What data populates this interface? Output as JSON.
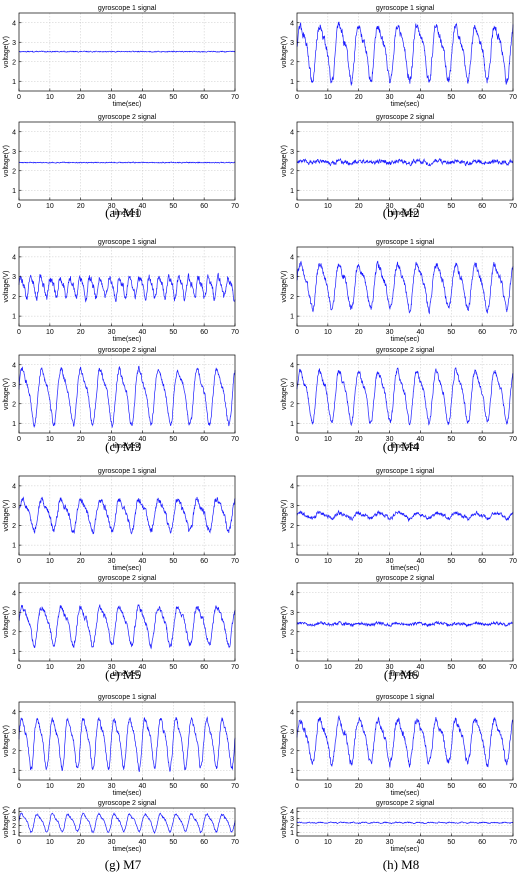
{
  "figure": {
    "panels": [
      {
        "caption": "(a) M1"
      },
      {
        "caption": "(b) M2"
      },
      {
        "caption": "(c) M3"
      },
      {
        "caption": "(d) M4"
      },
      {
        "caption": "(e) M5"
      },
      {
        "caption": "(f) M6"
      },
      {
        "caption": "(g) M7"
      },
      {
        "caption": "(h) M8"
      }
    ]
  },
  "colors": {
    "signal": "#1a1aff",
    "grid": "#c8c8c8",
    "axis": "#000000"
  },
  "chart_data": [
    {
      "type": "line",
      "panel": "M1",
      "title": "gyroscope 1 signal",
      "xlabel": "time(sec)",
      "ylabel": "voltage(V)",
      "xlim": [
        0,
        70
      ],
      "ylim": [
        0.5,
        4.5
      ],
      "xticks": [
        0,
        10,
        20,
        30,
        40,
        50,
        60,
        70
      ],
      "yticks": [
        1,
        2,
        3,
        4
      ],
      "grid": true,
      "signal": {
        "mean": 2.52,
        "amplitude": 0,
        "period_sec": 0,
        "noise": 0.02
      }
    },
    {
      "type": "line",
      "panel": "M1",
      "title": "gyroscope 2 signal",
      "xlabel": "time(sec)",
      "ylabel": "voltage(V)",
      "xlim": [
        0,
        70
      ],
      "ylim": [
        0.5,
        4.5
      ],
      "xticks": [
        0,
        10,
        20,
        30,
        40,
        50,
        60,
        70
      ],
      "yticks": [
        1,
        2,
        3,
        4
      ],
      "grid": true,
      "signal": {
        "mean": 2.42,
        "amplitude": 0,
        "period_sec": 0,
        "noise": 0.02
      }
    },
    {
      "type": "line",
      "panel": "M2",
      "title": "gyroscope 1 signal",
      "xlabel": "time(sec)",
      "ylabel": "voltage(V)",
      "xlim": [
        0,
        70
      ],
      "ylim": [
        0.5,
        4.5
      ],
      "xticks": [
        0,
        10,
        20,
        30,
        40,
        50,
        60,
        70
      ],
      "yticks": [
        1,
        2,
        3,
        4
      ],
      "grid": true,
      "signal": {
        "mean": 2.6,
        "amplitude": 1.5,
        "period_sec": 6.3,
        "noise": 0.18
      }
    },
    {
      "type": "line",
      "panel": "M2",
      "title": "gyroscope 2 signal",
      "xlabel": "time(sec)",
      "ylabel": "voltage(V)",
      "xlim": [
        0,
        70
      ],
      "ylim": [
        0.5,
        4.5
      ],
      "xticks": [
        0,
        10,
        20,
        30,
        40,
        50,
        60,
        70
      ],
      "yticks": [
        1,
        2,
        3,
        4
      ],
      "grid": true,
      "signal": {
        "mean": 2.45,
        "amplitude": 0.05,
        "period_sec": 6.3,
        "noise": 0.09
      }
    },
    {
      "type": "line",
      "panel": "M3",
      "title": "gyroscope 1 signal",
      "xlabel": "time(sec)",
      "ylabel": "voltage(V)",
      "xlim": [
        0,
        70
      ],
      "ylim": [
        0.5,
        4.5
      ],
      "xticks": [
        0,
        10,
        20,
        30,
        40,
        50,
        60,
        70
      ],
      "yticks": [
        1,
        2,
        3,
        4
      ],
      "grid": true,
      "signal": {
        "mean": 2.5,
        "amplitude": 0.55,
        "period_sec": 3.2,
        "noise": 0.15
      }
    },
    {
      "type": "line",
      "panel": "M3",
      "title": "gyroscope 2 signal",
      "xlabel": "time(sec)",
      "ylabel": "voltage(V)",
      "xlim": [
        0,
        70
      ],
      "ylim": [
        0.5,
        4.5
      ],
      "xticks": [
        0,
        10,
        20,
        30,
        40,
        50,
        60,
        70
      ],
      "yticks": [
        1,
        2,
        3,
        4
      ],
      "grid": true,
      "signal": {
        "mean": 2.5,
        "amplitude": 1.5,
        "period_sec": 6.3,
        "noise": 0.12
      }
    },
    {
      "type": "line",
      "panel": "M4",
      "title": "gyroscope 1 signal",
      "xlabel": "time(sec)",
      "ylabel": "voltage(V)",
      "xlim": [
        0,
        70
      ],
      "ylim": [
        0.5,
        4.5
      ],
      "xticks": [
        0,
        10,
        20,
        30,
        40,
        50,
        60,
        70
      ],
      "yticks": [
        1,
        2,
        3,
        4
      ],
      "grid": true,
      "signal": {
        "mean": 2.6,
        "amplitude": 1.2,
        "period_sec": 6.3,
        "noise": 0.15
      }
    },
    {
      "type": "line",
      "panel": "M4",
      "title": "gyroscope 2 signal",
      "xlabel": "time(sec)",
      "ylabel": "voltage(V)",
      "xlim": [
        0,
        70
      ],
      "ylim": [
        0.5,
        4.5
      ],
      "xticks": [
        0,
        10,
        20,
        30,
        40,
        50,
        60,
        70
      ],
      "yticks": [
        1,
        2,
        3,
        4
      ],
      "grid": true,
      "signal": {
        "mean": 2.5,
        "amplitude": 1.4,
        "period_sec": 6.3,
        "noise": 0.12
      }
    },
    {
      "type": "line",
      "panel": "M5",
      "title": "gyroscope 1 signal",
      "xlabel": "time(sec)",
      "ylabel": "voltage(V)",
      "xlim": [
        0,
        70
      ],
      "ylim": [
        0.5,
        4.5
      ],
      "xticks": [
        0,
        10,
        20,
        30,
        40,
        50,
        60,
        70
      ],
      "yticks": [
        1,
        2,
        3,
        4
      ],
      "grid": true,
      "signal": {
        "mean": 2.6,
        "amplitude": 0.85,
        "period_sec": 6.3,
        "noise": 0.13
      }
    },
    {
      "type": "line",
      "panel": "M5",
      "title": "gyroscope 2 signal",
      "xlabel": "time(sec)",
      "ylabel": "voltage(V)",
      "xlim": [
        0,
        70
      ],
      "ylim": [
        0.5,
        4.5
      ],
      "xticks": [
        0,
        10,
        20,
        30,
        40,
        50,
        60,
        70
      ],
      "yticks": [
        1,
        2,
        3,
        4
      ],
      "grid": true,
      "signal": {
        "mean": 2.4,
        "amplitude": 1.05,
        "period_sec": 6.3,
        "noise": 0.12
      }
    },
    {
      "type": "line",
      "panel": "M6",
      "title": "gyroscope 1 signal",
      "xlabel": "time(sec)",
      "ylabel": "voltage(V)",
      "xlim": [
        0,
        70
      ],
      "ylim": [
        0.5,
        4.5
      ],
      "xticks": [
        0,
        10,
        20,
        30,
        40,
        50,
        60,
        70
      ],
      "yticks": [
        1,
        2,
        3,
        4
      ],
      "grid": true,
      "signal": {
        "mean": 2.5,
        "amplitude": 0.15,
        "period_sec": 6.3,
        "noise": 0.08
      }
    },
    {
      "type": "line",
      "panel": "M6",
      "title": "gyroscope 2 signal",
      "xlabel": "time(sec)",
      "ylabel": "voltage(V)",
      "xlim": [
        0,
        70
      ],
      "ylim": [
        0.5,
        4.5
      ],
      "xticks": [
        0,
        10,
        20,
        30,
        40,
        50,
        60,
        70
      ],
      "yticks": [
        1,
        2,
        3,
        4
      ],
      "grid": true,
      "signal": {
        "mean": 2.4,
        "amplitude": 0.05,
        "period_sec": 6.3,
        "noise": 0.06
      }
    },
    {
      "type": "line",
      "panel": "M7",
      "title": "gyroscope 1 signal",
      "xlabel": "time(sec)",
      "ylabel": "voltage(V)",
      "xlim": [
        0,
        70
      ],
      "ylim": [
        0.5,
        4.5
      ],
      "xticks": [
        0,
        10,
        20,
        30,
        40,
        50,
        60,
        70
      ],
      "yticks": [
        1,
        2,
        3,
        4
      ],
      "grid": true,
      "signal": {
        "mean": 2.5,
        "amplitude": 1.35,
        "period_sec": 5.0,
        "noise": 0.12
      }
    },
    {
      "type": "line",
      "panel": "M7",
      "title": "gyroscope 2 signal",
      "xlabel": "time(sec)",
      "ylabel": "voltage(V)",
      "xlim": [
        0,
        70
      ],
      "ylim": [
        0.5,
        4.5
      ],
      "xticks": [
        0,
        10,
        20,
        30,
        40,
        50,
        60,
        70
      ],
      "yticks": [
        1,
        2,
        3,
        4
      ],
      "grid": true,
      "signal": {
        "mean": 2.5,
        "amplitude": 1.35,
        "period_sec": 5.0,
        "noise": 0.12
      }
    },
    {
      "type": "line",
      "panel": "M8",
      "title": "gyroscope 1 signal",
      "xlabel": "time(sec)",
      "ylabel": "voltage(V)",
      "xlim": [
        0,
        70
      ],
      "ylim": [
        0.5,
        4.5
      ],
      "xticks": [
        0,
        10,
        20,
        30,
        40,
        50,
        60,
        70
      ],
      "yticks": [
        1,
        2,
        3,
        4
      ],
      "grid": true,
      "signal": {
        "mean": 2.6,
        "amplitude": 1.2,
        "period_sec": 6.3,
        "noise": 0.15
      }
    },
    {
      "type": "line",
      "panel": "M8",
      "title": "gyroscope 2 signal",
      "xlabel": "time(sec)",
      "ylabel": "voltage(V)",
      "xlim": [
        0,
        70
      ],
      "ylim": [
        0.5,
        4.5
      ],
      "xticks": [
        0,
        10,
        20,
        30,
        40,
        50,
        60,
        70
      ],
      "yticks": [
        1,
        2,
        3,
        4
      ],
      "grid": true,
      "signal": {
        "mean": 2.4,
        "amplitude": 0.06,
        "period_sec": 3.5,
        "noise": 0.06
      }
    }
  ]
}
